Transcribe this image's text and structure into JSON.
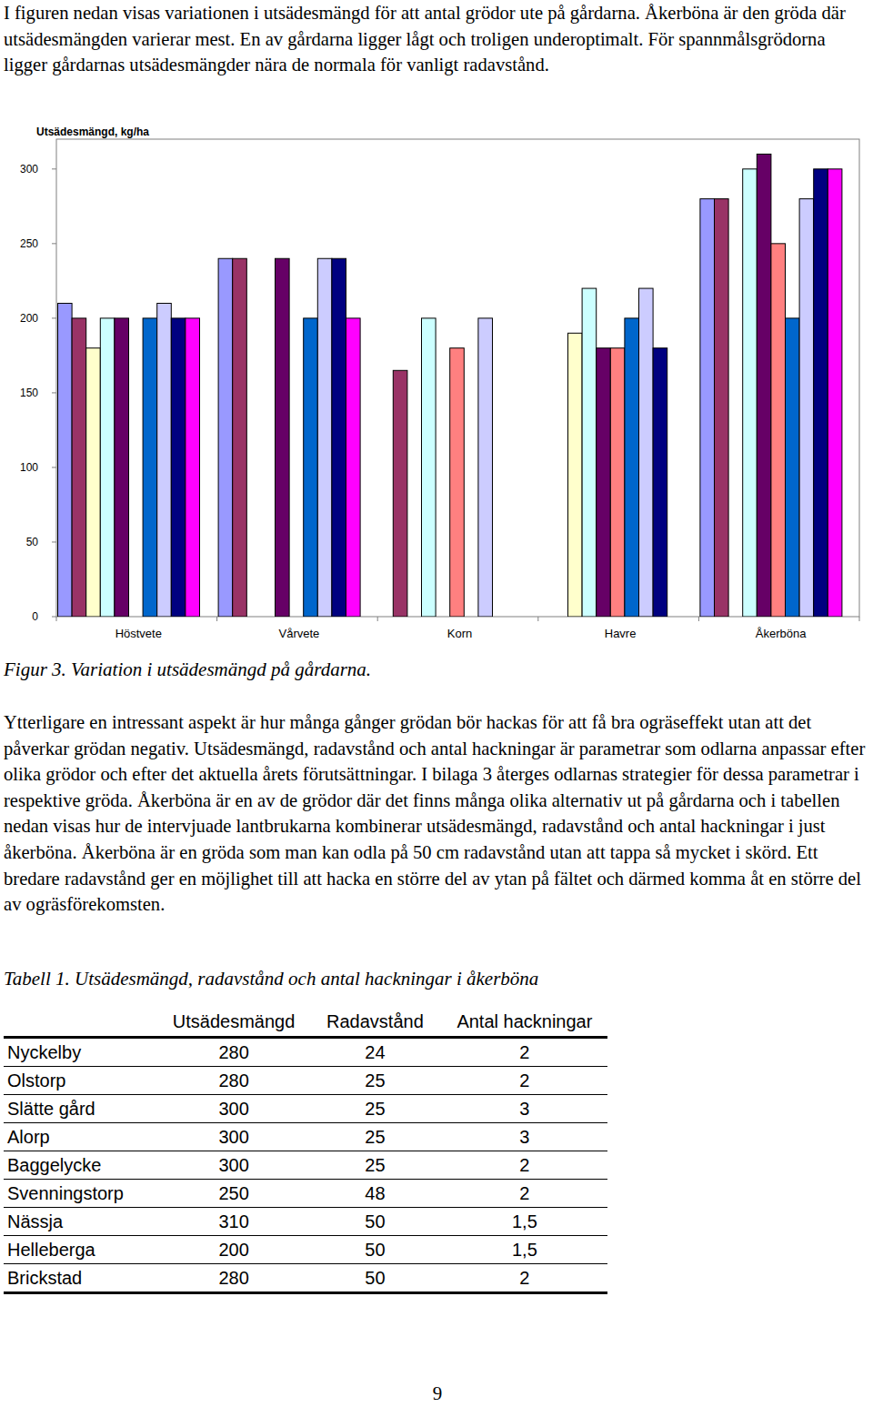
{
  "paragraphs": [
    "I figuren nedan visas variationen i utsädesmängd för att antal grödor ute på gårdarna. Åkerböna är den gröda där utsädesmängden varierar mest. En av gårdarna ligger lågt och troligen underoptimalt. För spannmålsgrödorna ligger gårdarnas utsädesmängder nära de normala för vanligt radavstånd.",
    "Ytterligare en intressant aspekt är hur många gånger grödan bör hackas för att få bra ogräseffekt utan att det påverkar grödan negativ. Utsädesmängd, radavstånd och antal hackningar är parametrar som odlarna anpassar efter olika grödor och efter det aktuella årets förutsättningar. I bilaga 3 återges odlarnas strategier för dessa parametrar i respektive gröda. Åkerböna är en av de grödor där det finns många olika alternativ ut på gårdarna och i tabellen nedan visas hur de intervjuade lantbrukarna kombinerar utsädesmängd, radavstånd och antal hackningar i just åkerböna. Åkerböna är en gröda som man kan odla på 50 cm radavstånd utan att tappa så mycket i skörd. Ett bredare radavstånd ger en möjlighet till att hacka en större del av ytan på fältet och därmed komma åt en större del av ogräsförekomsten."
  ],
  "chart_data": {
    "type": "bar",
    "title": "Utsädesmängd, kg/ha",
    "categories": [
      "Höstvete",
      "Vårvete",
      "Korn",
      "Havre",
      "Åkerböna"
    ],
    "series": [
      {
        "color": "#9999ff",
        "values": [
          210,
          240,
          null,
          null,
          280
        ]
      },
      {
        "color": "#993366",
        "values": [
          200,
          240,
          165,
          null,
          280
        ]
      },
      {
        "color": "#ffffcc",
        "values": [
          180,
          null,
          null,
          190,
          null
        ]
      },
      {
        "color": "#ccffff",
        "values": [
          200,
          null,
          200,
          220,
          300
        ]
      },
      {
        "color": "#660066",
        "values": [
          200,
          240,
          null,
          180,
          310
        ]
      },
      {
        "color": "#ff8080",
        "values": [
          null,
          null,
          180,
          180,
          250
        ]
      },
      {
        "color": "#0066cc",
        "values": [
          200,
          200,
          null,
          200,
          200
        ]
      },
      {
        "color": "#ccccff",
        "values": [
          210,
          240,
          200,
          220,
          280
        ]
      },
      {
        "color": "#000080",
        "values": [
          200,
          240,
          null,
          180,
          300
        ]
      },
      {
        "color": "#ff00ff",
        "values": [
          200,
          200,
          null,
          null,
          300
        ]
      }
    ],
    "ylim": [
      0,
      320
    ],
    "yticks": [
      0,
      50,
      100,
      150,
      200,
      250,
      300
    ]
  },
  "figure_caption": "Figur 3. Variation i utsädesmängd på gårdarna.",
  "table_caption": "Tabell 1. Utsädesmängd, radavstånd och antal hackningar i åkerböna",
  "table": {
    "columns": [
      "",
      "Utsädesmängd",
      "Radavstånd",
      "Antal hackningar"
    ],
    "rows": [
      [
        "Nyckelby",
        "280",
        "24",
        "2"
      ],
      [
        "Olstorp",
        "280",
        "25",
        "2"
      ],
      [
        "Slätte gård",
        "300",
        "25",
        "3"
      ],
      [
        "Alorp",
        "300",
        "25",
        "3"
      ],
      [
        "Baggelycke",
        "300",
        "25",
        "2"
      ],
      [
        "Svenningstorp",
        "250",
        "48",
        "2"
      ],
      [
        "Nässja",
        "310",
        "50",
        "1,5"
      ],
      [
        "Helleberga",
        "200",
        "50",
        "1,5"
      ],
      [
        "Brickstad",
        "280",
        "50",
        "2"
      ]
    ]
  },
  "page_number": "9"
}
